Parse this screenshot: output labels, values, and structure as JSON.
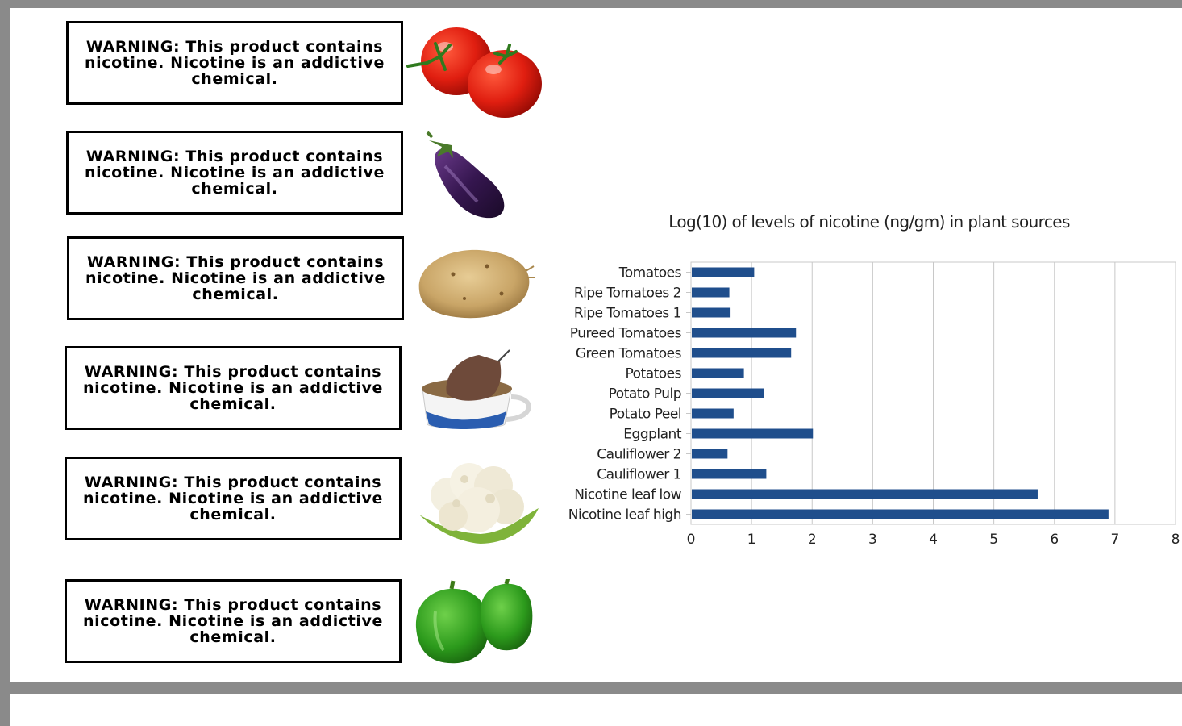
{
  "warnings": [
    {
      "text": "WARNING: This product contains nicotine. Nicotine is an addictive chemical.",
      "image": "tomatoes"
    },
    {
      "text": "WARNING: This product contains nicotine. Nicotine is an addictive chemical.",
      "image": "eggplant"
    },
    {
      "text": "WARNING: This product contains nicotine. Nicotine is an addictive chemical.",
      "image": "potato"
    },
    {
      "text": "WARNING: This product contains nicotine. Nicotine is an addictive chemical.",
      "image": "tea-cup"
    },
    {
      "text": "WARNING: This product contains nicotine. Nicotine is an addictive chemical.",
      "image": "cauliflower"
    },
    {
      "text": "WARNING: This product contains nicotine. Nicotine is an addictive chemical.",
      "image": "green-peppers"
    }
  ],
  "chart_data": {
    "type": "bar",
    "orientation": "horizontal",
    "title": "Log(10) of levels of nicotine (ng/gm) in plant sources",
    "xlabel": "",
    "ylabel": "",
    "categories": [
      "Tomatoes",
      "Ripe Tomatoes 2",
      "Ripe Tomatoes 1",
      "Pureed Tomatoes",
      "Green Tomatoes",
      "Potatoes",
      "Potato Pulp",
      "Potato Peel",
      "Eggplant",
      "Cauliflower 2",
      "Cauliflower 1",
      "Nicotine leaf low",
      "Nicotine leaf high"
    ],
    "values": [
      1.03,
      0.62,
      0.64,
      1.72,
      1.64,
      0.86,
      1.19,
      0.69,
      2.0,
      0.59,
      1.23,
      5.71,
      6.88
    ],
    "xlim": [
      0,
      8
    ],
    "xticks": [
      "0",
      "1",
      "2",
      "3",
      "4",
      "5",
      "6",
      "7",
      "8"
    ],
    "grid": true,
    "legend": "none",
    "bar_color": "#1f4e8c"
  }
}
